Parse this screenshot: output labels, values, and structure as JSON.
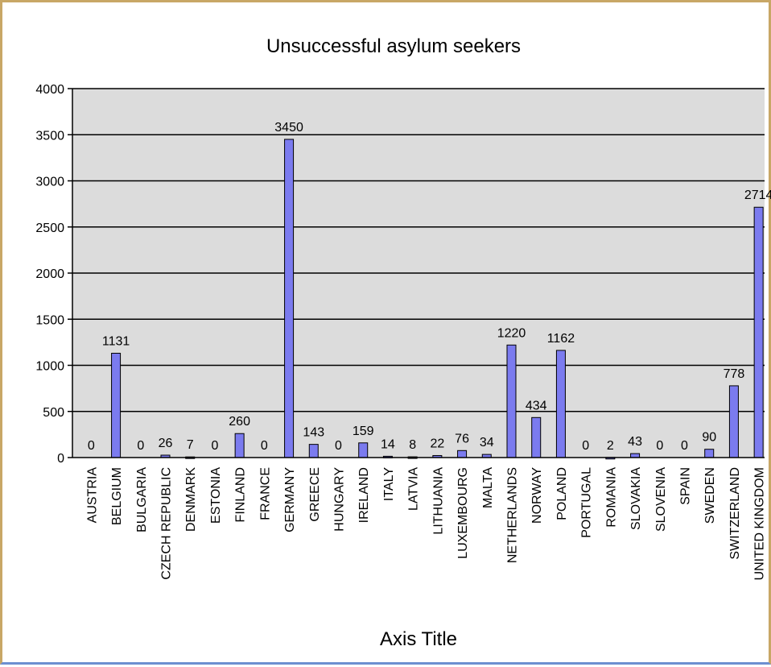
{
  "chart_data": {
    "type": "bar",
    "title": "Unsuccessful asylum seekers",
    "xlabel": "Axis Title",
    "ylabel": "",
    "ylim": [
      0,
      4000
    ],
    "yticks": [
      "0",
      "500",
      "1000",
      "1500",
      "2000",
      "2500",
      "3000",
      "3500",
      "4000"
    ],
    "grid": true,
    "legend": "none",
    "categories": [
      "AUSTRIA",
      "BELGIUM",
      "BULGARIA",
      "CZECH REPUBLIC",
      "DENMARK",
      "ESTONIA",
      "FINLAND",
      "FRANCE",
      "GERMANY",
      "GREECE",
      "HUNGARY",
      "IRELAND",
      "ITALY",
      "LATVIA",
      "LITHUANIA",
      "LUXEMBOURG",
      "MALTA",
      "NETHERLANDS",
      "NORWAY",
      "POLAND",
      "PORTUGAL",
      "ROMANIA",
      "SLOVAKIA",
      "SLOVENIA",
      "SPAIN",
      "SWEDEN",
      "SWITZERLAND",
      "UNITED KINGDOM"
    ],
    "values": [
      0,
      1131,
      0,
      26,
      7,
      0,
      260,
      0,
      3450,
      143,
      0,
      159,
      14,
      8,
      22,
      76,
      34,
      1220,
      434,
      1162,
      0,
      2,
      43,
      0,
      0,
      90,
      778,
      2714
    ],
    "colors": {
      "bar_fill": "#7b7bef",
      "bar_stroke": "#000000",
      "plot_background": "#dcdcdc",
      "gridline": "#000000",
      "frame_top_left": "#c8a766",
      "frame_bottom": "#6d8fd0"
    }
  }
}
